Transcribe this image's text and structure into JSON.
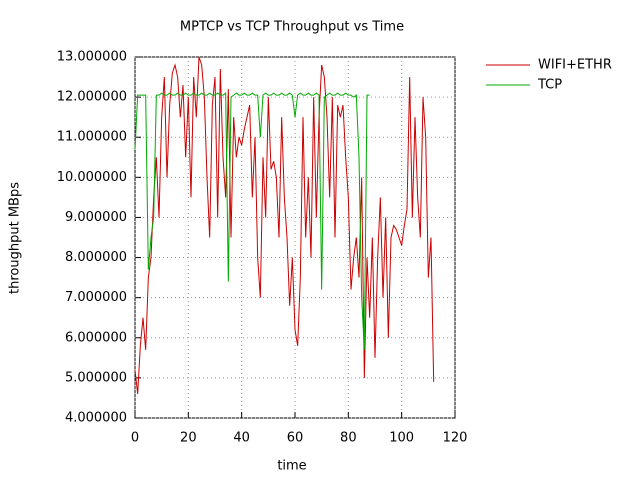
{
  "chart_data": {
    "type": "line",
    "title": "MPTCP vs TCP Throughput vs Time",
    "xlabel": "time",
    "ylabel": "throughput MBps",
    "xlim": [
      0,
      120
    ],
    "xticks": [
      0,
      20,
      40,
      60,
      80,
      100,
      120
    ],
    "ylim": [
      4,
      13
    ],
    "yticks": [
      {
        "value": 4,
        "label": "4.000000"
      },
      {
        "value": 5,
        "label": "5.000000"
      },
      {
        "value": 6,
        "label": "6.000000"
      },
      {
        "value": 7,
        "label": "7.000000"
      },
      {
        "value": 8,
        "label": "8.000000"
      },
      {
        "value": 9,
        "label": "9.000000"
      },
      {
        "value": 10,
        "label": "10.000000"
      },
      {
        "value": 11,
        "label": "11.000000"
      },
      {
        "value": 12,
        "label": "12.000000"
      },
      {
        "value": 13,
        "label": "13.000000"
      }
    ],
    "grid": true,
    "legend": "top-right",
    "series": [
      {
        "name": "WIFI+ETHR",
        "color": "#cc0000",
        "x": [
          0,
          1,
          2,
          3,
          4,
          5,
          6,
          7,
          8,
          9,
          10,
          11,
          12,
          13,
          14,
          15,
          16,
          17,
          18,
          19,
          20,
          21,
          22,
          23,
          24,
          25,
          26,
          27,
          28,
          29,
          30,
          31,
          32,
          33,
          34,
          35,
          36,
          37,
          38,
          39,
          40,
          41,
          42,
          43,
          44,
          45,
          46,
          47,
          48,
          49,
          50,
          51,
          52,
          53,
          54,
          55,
          56,
          57,
          58,
          59,
          60,
          61,
          62,
          63,
          64,
          65,
          66,
          67,
          68,
          69,
          70,
          71,
          72,
          73,
          74,
          75,
          76,
          77,
          78,
          79,
          80,
          81,
          82,
          83,
          84,
          85,
          86,
          87,
          88,
          89,
          90,
          91,
          92,
          93,
          94,
          95,
          96,
          97,
          98,
          99,
          100,
          101,
          102,
          103,
          104,
          105,
          106,
          107,
          108,
          109,
          110,
          111,
          112
        ],
        "values": [
          5.2,
          4.6,
          5.8,
          6.5,
          5.7,
          7.5,
          8.0,
          9.5,
          10.5,
          9.0,
          11.5,
          12.5,
          10.0,
          11.8,
          12.6,
          12.8,
          12.5,
          11.5,
          12.3,
          10.5,
          12.0,
          9.5,
          12.5,
          11.5,
          13.0,
          12.8,
          12.0,
          10.0,
          8.5,
          11.8,
          12.5,
          9.0,
          12.7,
          10.5,
          9.5,
          12.2,
          8.5,
          11.5,
          10.5,
          11.0,
          10.8,
          11.2,
          11.5,
          11.8,
          9.5,
          11.0,
          8.0,
          7.0,
          10.5,
          9.0,
          12.0,
          10.2,
          10.4,
          10.0,
          8.5,
          11.5,
          9.5,
          8.5,
          6.8,
          8.0,
          6.2,
          5.8,
          7.5,
          11.5,
          8.5,
          10.0,
          8.0,
          12.0,
          9.0,
          11.5,
          12.8,
          12.5,
          11.5,
          9.5,
          12.0,
          8.5,
          11.8,
          11.5,
          11.8,
          10.5,
          9.5,
          7.2,
          8.0,
          8.5,
          7.5,
          10.0,
          5.0,
          8.0,
          6.5,
          8.5,
          5.5,
          8.0,
          9.5,
          7.0,
          9.0,
          6.0,
          8.5,
          8.8,
          8.7,
          8.5,
          8.3,
          8.8,
          9.2,
          12.5,
          9.0,
          11.5,
          9.5,
          8.5,
          12.0,
          11.0,
          7.5,
          8.5,
          4.9
        ]
      },
      {
        "name": "TCP",
        "color": "#00aa00",
        "x": [
          0,
          1,
          2,
          3,
          4,
          5,
          6,
          7,
          8,
          9,
          10,
          11,
          12,
          13,
          14,
          15,
          16,
          17,
          18,
          19,
          20,
          21,
          22,
          23,
          24,
          25,
          26,
          27,
          28,
          29,
          30,
          31,
          32,
          33,
          34,
          35,
          36,
          37,
          38,
          39,
          40,
          41,
          42,
          43,
          44,
          45,
          46,
          47,
          48,
          49,
          50,
          51,
          52,
          53,
          54,
          55,
          56,
          57,
          58,
          59,
          60,
          61,
          62,
          63,
          64,
          65,
          66,
          67,
          68,
          69,
          70,
          71,
          72,
          73,
          74,
          75,
          76,
          77,
          78,
          79,
          80,
          81,
          82,
          83,
          84,
          85,
          86,
          87,
          88
        ],
        "values": [
          10.7,
          12.05,
          12.05,
          12.05,
          12.05,
          7.7,
          8.5,
          9.0,
          12.05,
          12.05,
          12.1,
          12.05,
          12.05,
          12.1,
          12.05,
          12.05,
          12.1,
          12.05,
          12.05,
          12.1,
          12.05,
          12.05,
          12.1,
          12.05,
          12.05,
          12.1,
          12.05,
          12.05,
          12.1,
          12.05,
          12.05,
          12.1,
          12.05,
          12.05,
          12.1,
          7.4,
          12.0,
          12.05,
          12.1,
          12.05,
          12.05,
          12.1,
          12.05,
          12.05,
          12.1,
          12.05,
          12.05,
          11.0,
          12.05,
          12.1,
          12.05,
          12.05,
          12.1,
          12.05,
          12.05,
          12.1,
          12.05,
          12.05,
          12.1,
          12.05,
          11.5,
          12.05,
          12.1,
          12.05,
          12.05,
          12.1,
          12.05,
          12.05,
          12.1,
          12.05,
          7.2,
          12.0,
          12.05,
          12.1,
          12.05,
          12.05,
          12.1,
          12.05,
          12.05,
          12.1,
          12.05,
          12.05,
          12.0,
          12.05,
          10.5,
          7.0,
          5.7,
          12.05,
          12.05
        ]
      }
    ]
  }
}
